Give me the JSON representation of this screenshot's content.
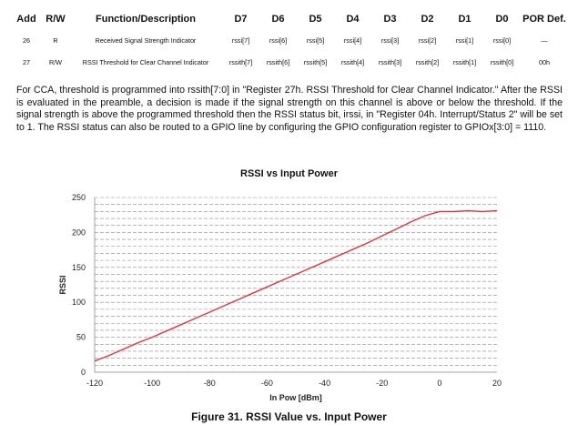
{
  "register_table": {
    "headers": [
      "Add",
      "R/W",
      "Function/Description",
      "D7",
      "D6",
      "D5",
      "D4",
      "D3",
      "D2",
      "D1",
      "D0",
      "POR Def."
    ],
    "rows": [
      [
        "26",
        "R",
        "Received Signal Strength Indicator",
        "rssi[7]",
        "rssi[6]",
        "rssi[5]",
        "rssi[4]",
        "rssi[3]",
        "rssi[2]",
        "rssi[1]",
        "rssi[0]",
        "—"
      ],
      [
        "27",
        "R/W",
        "RSSI Threshold for Clear Channel Indicator",
        "rssith[7]",
        "rssith[6]",
        "rssith[5]",
        "rssith[4]",
        "rssith[3]",
        "rssith[2]",
        "rssith[1]",
        "rssith[0]",
        "00h"
      ]
    ]
  },
  "paragraph": "For CCA, threshold is programmed into rssith[7:0] in \"Register 27h. RSSI Threshold for Clear Channel Indicator.\" After the RSSI is evaluated in the preamble, a decision is made if the signal strength on this channel is above or below the threshold. If the signal strength is above the programmed threshold then the RSSI status bit, irssi, in \"Register 04h. Interrupt/Status 2\" will be set to 1. The RSSI status can also be routed to a GPIO line by configuring the GPIO configuration register to GPIOx[3:0] = 1110.",
  "figure_caption": "Figure 31. RSSI Value vs. Input Power",
  "chart_data": {
    "type": "line",
    "title": "RSSI vs Input Power",
    "xlabel": "In Pow [dBm]",
    "ylabel": "RSSI",
    "xlim": [
      -120,
      20
    ],
    "ylim": [
      0,
      250
    ],
    "xticks": [
      -120,
      -100,
      -80,
      -60,
      -40,
      -20,
      0,
      20
    ],
    "yticks": [
      0,
      50,
      100,
      150,
      200,
      250
    ],
    "grid": "horizontal dashed lines every 10 units",
    "line_color": "#e8333a",
    "series": [
      {
        "x": [
          -120,
          -115,
          -110,
          -105,
          -100,
          -95,
          -90,
          -85,
          -80,
          -75,
          -70,
          -65,
          -60,
          -55,
          -50,
          -45,
          -40,
          -35,
          -30,
          -25,
          -20,
          -15,
          -10,
          -5,
          0,
          5,
          10,
          15,
          20
        ],
        "values": [
          16,
          24,
          33,
          42,
          50,
          59,
          68,
          77,
          86,
          95,
          104,
          113,
          122,
          131,
          140,
          149,
          158,
          167,
          176,
          185,
          195,
          205,
          215,
          224,
          230,
          230,
          231,
          230,
          231
        ]
      }
    ]
  }
}
